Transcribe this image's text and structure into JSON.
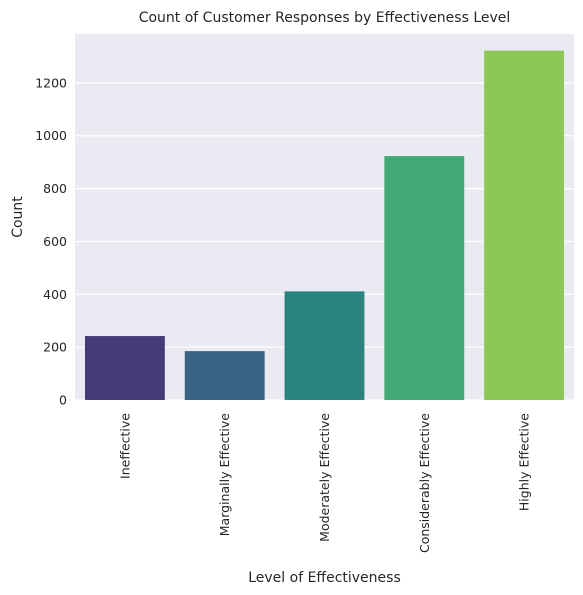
{
  "chart_data": {
    "type": "bar",
    "title": "Count of Customer Responses by Effectiveness Level",
    "xlabel": "Level of Effectiveness",
    "ylabel": "Count",
    "categories": [
      "Ineffective",
      "Marginally Effective",
      "Moderately Effective",
      "Considerably Effective",
      "Highly Effective"
    ],
    "values": [
      242,
      185,
      411,
      923,
      1322
    ],
    "ylim": [
      0,
      1385
    ],
    "yticks": [
      0,
      200,
      400,
      600,
      800,
      1000,
      1200
    ],
    "grid": true,
    "colors": [
      "#463a7a",
      "#3a6283",
      "#2a837f",
      "#41a976",
      "#8bc855"
    ],
    "background": "#eaeaf2",
    "grid_color": "#ffffff"
  }
}
